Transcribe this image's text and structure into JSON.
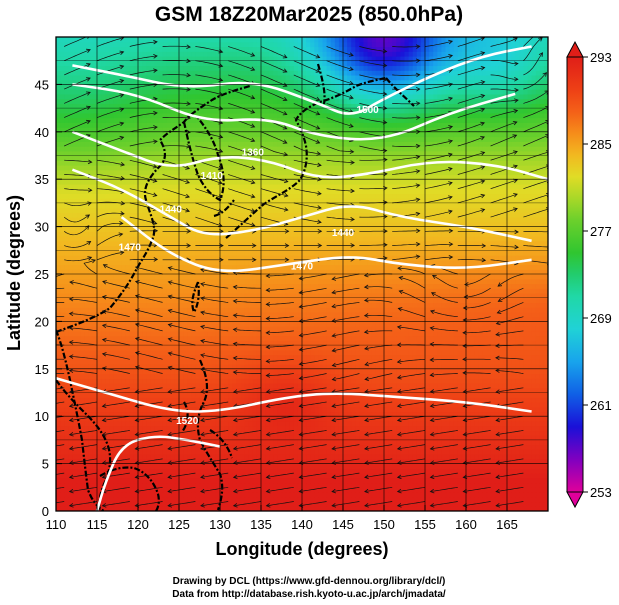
{
  "chart_data": {
    "type": "heatmap",
    "title": "GSM 18Z20Mar2025 (850.0hPa)",
    "xlabel": "Longitude (degrees)",
    "ylabel": "Latitude  (degrees)",
    "xlim": [
      110,
      170
    ],
    "ylim": [
      0,
      50
    ],
    "xticks": [
      110,
      115,
      120,
      125,
      130,
      135,
      140,
      145,
      150,
      155,
      160,
      165
    ],
    "yticks": [
      0,
      5,
      10,
      15,
      20,
      25,
      30,
      35,
      40,
      45
    ],
    "grid": true,
    "variable": "temperature (K) with streamlines and geopotential height contours",
    "colorbar": {
      "min": 253,
      "max": 293,
      "ticks": [
        253,
        261,
        269,
        277,
        285,
        293
      ],
      "stops": [
        {
          "v": 253,
          "c": "#e0009a"
        },
        {
          "v": 256,
          "c": "#8000c0"
        },
        {
          "v": 259,
          "c": "#1a10d8"
        },
        {
          "v": 262,
          "c": "#1060e6"
        },
        {
          "v": 265,
          "c": "#18a4ec"
        },
        {
          "v": 268,
          "c": "#20d2d6"
        },
        {
          "v": 271,
          "c": "#20d8a6"
        },
        {
          "v": 273,
          "c": "#22cc6e"
        },
        {
          "v": 275,
          "c": "#30c630"
        },
        {
          "v": 278,
          "c": "#6cd02c"
        },
        {
          "v": 280,
          "c": "#a8d828"
        },
        {
          "v": 282,
          "c": "#e0dc26"
        },
        {
          "v": 284,
          "c": "#f2b820"
        },
        {
          "v": 286,
          "c": "#f68c1a"
        },
        {
          "v": 288,
          "c": "#f46018"
        },
        {
          "v": 290,
          "c": "#ee4016"
        },
        {
          "v": 293,
          "c": "#e01e18"
        }
      ]
    },
    "contour_labels": [
      "1500",
      "1360",
      "1410",
      "1440",
      "1440",
      "1470",
      "1470",
      "1520"
    ]
  },
  "credits": {
    "line1": "Drawing by DCL (https://www.gfd-dennou.org/library/dcl/)",
    "line2": "Data from http://database.rish.kyoto-u.ac.jp/arch/jmadata/"
  }
}
